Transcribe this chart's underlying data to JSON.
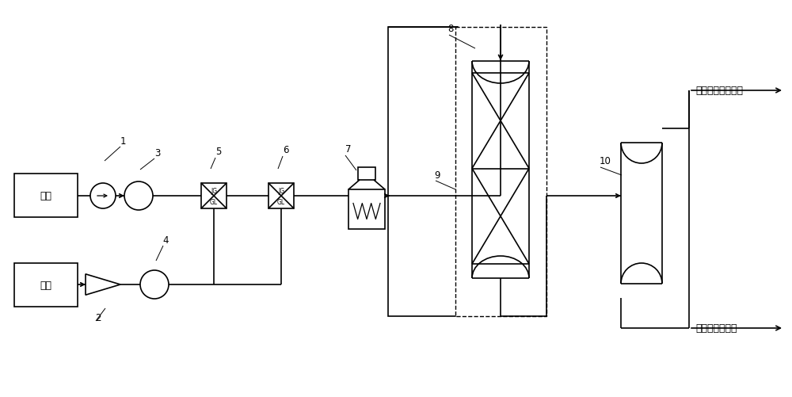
{
  "bg_color": "#ffffff",
  "line_color": "#000000",
  "labels": {
    "wax_oil": "蜡油",
    "hydrogen": "氢气",
    "gas_phase": "气相至循环氢系统",
    "liquid_phase": "液相至分馏系统",
    "num1": "1",
    "num2": "2",
    "num3": "3",
    "num4": "4",
    "num5": "5",
    "num6": "6",
    "num7": "7",
    "num8": "8",
    "num9": "9",
    "num10": "10",
    "jg": "JG",
    "gl": "GL"
  },
  "figsize": [
    10.0,
    5.02
  ],
  "dpi": 100
}
